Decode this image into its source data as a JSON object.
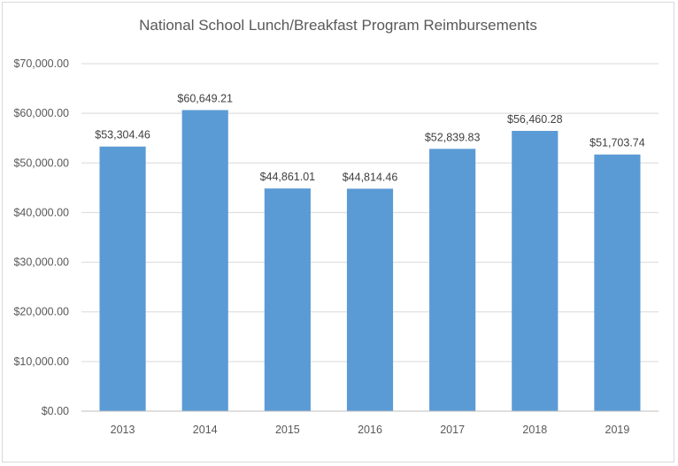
{
  "chart_data": {
    "type": "bar",
    "title": "National School Lunch/Breakfast Program Reimbursements",
    "categories": [
      "2013",
      "2014",
      "2015",
      "2016",
      "2017",
      "2018",
      "2019"
    ],
    "values": [
      53304.46,
      60649.21,
      44861.01,
      44814.46,
      52839.83,
      56460.28,
      51703.74
    ],
    "data_labels": [
      "$53,304.46",
      "$60,649.21",
      "$44,861.01",
      "$44,814.46",
      "$52,839.83",
      "$56,460.28",
      "$51,703.74"
    ],
    "y_ticks": [
      "$0.00",
      "$10,000.00",
      "$20,000.00",
      "$30,000.00",
      "$40,000.00",
      "$50,000.00",
      "$60,000.00",
      "$70,000.00"
    ],
    "ylim": [
      0,
      70000
    ],
    "xlabel": "",
    "ylabel": "",
    "grid": true,
    "legend": "none",
    "colors": {
      "bar": "#5b9bd5",
      "grid": "#d9d9d9",
      "text": "#595959"
    }
  }
}
